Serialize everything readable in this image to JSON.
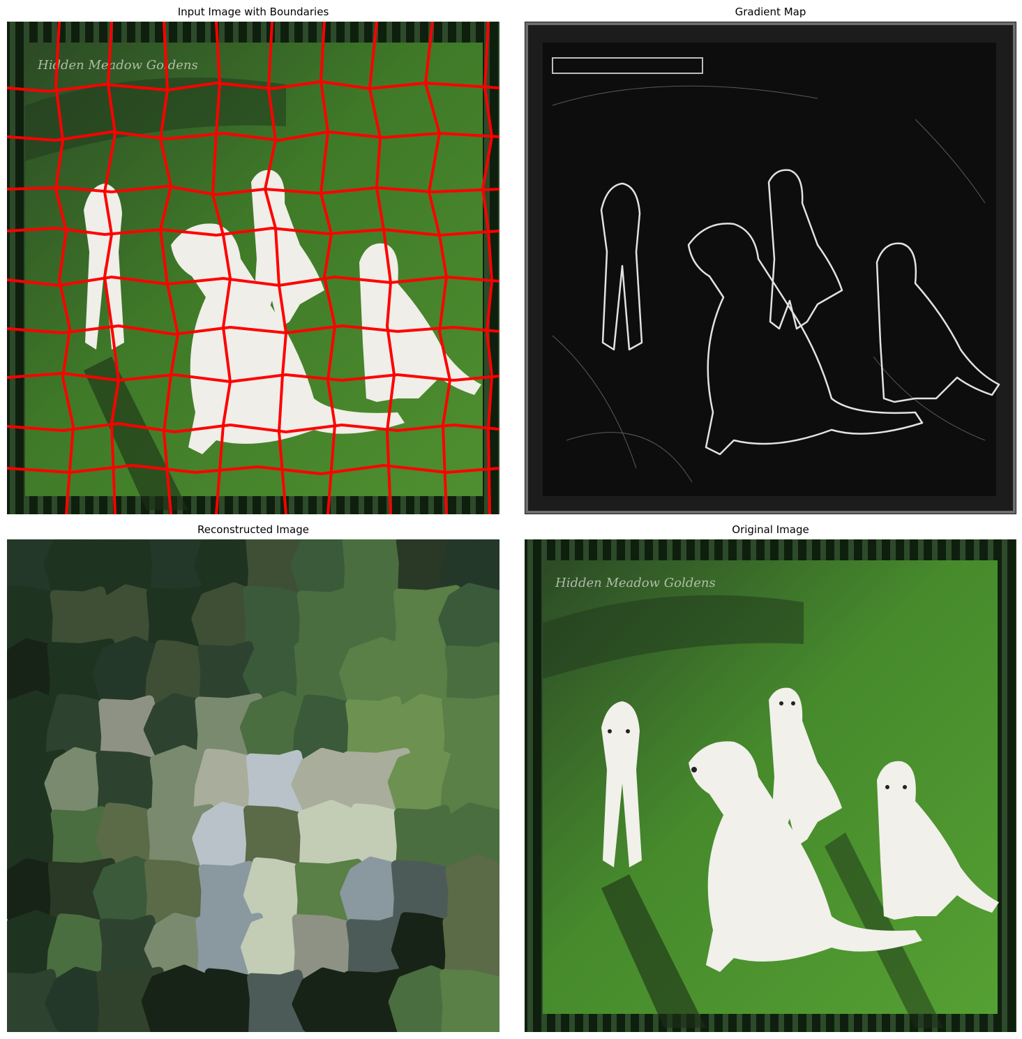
{
  "panels": {
    "input": {
      "title": "Input Image with Boundaries",
      "boundary_color": "#ff0000"
    },
    "gradient": {
      "title": "Gradient Map"
    },
    "reconstructed": {
      "title": "Reconstructed Image"
    },
    "original": {
      "title": "Original Image"
    }
  },
  "watermark_text": "Hidden Meadow Goldens",
  "colors": {
    "grass_light": "#4f8a2c",
    "grass_dark": "#2a4a1e",
    "frame_dark": "#0f1f0e",
    "dog_white": "#f1f0ea",
    "gradient_bg": "#0d0d0d"
  }
}
